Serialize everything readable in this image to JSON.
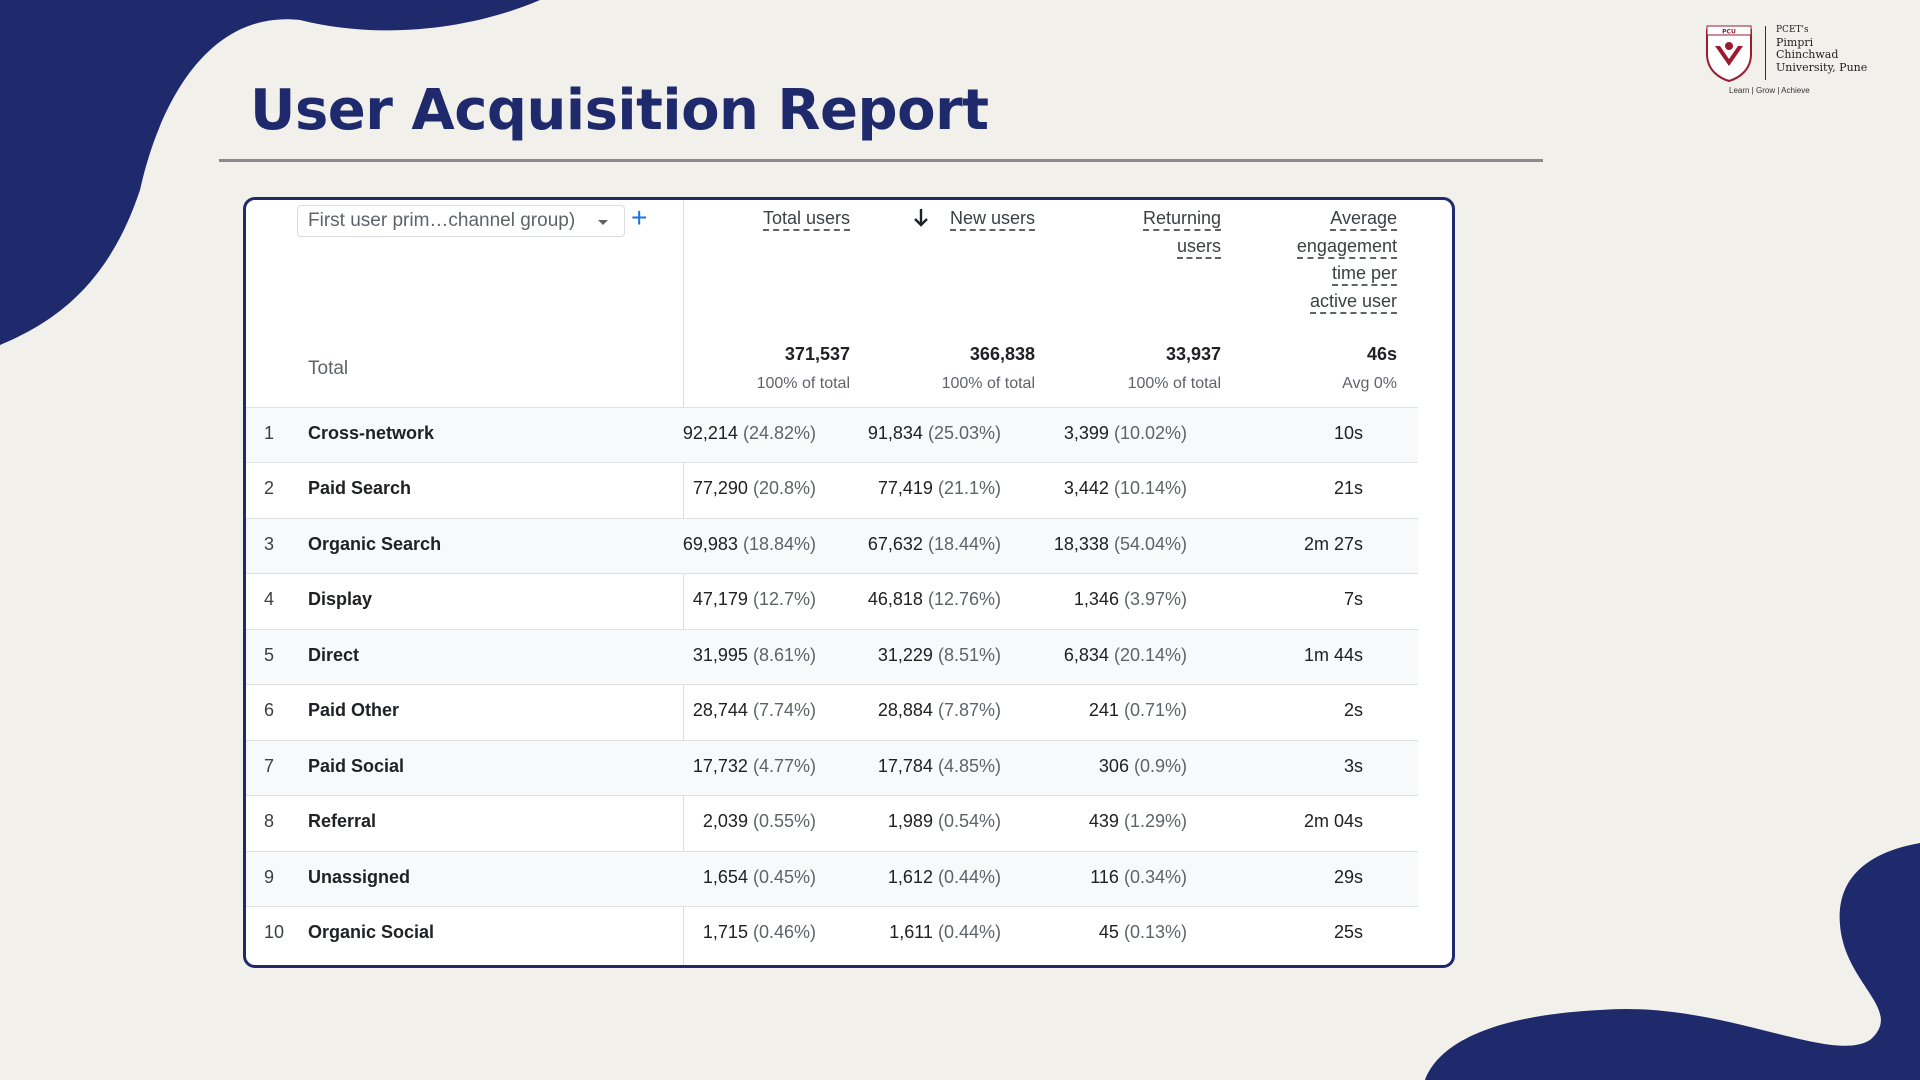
{
  "page_title": "User Acquisition Report",
  "logo": {
    "line1": "PCET's",
    "line2": "Pimpri",
    "line3": "Chinchwad",
    "line4": "University, Pune",
    "tagline": "Learn | Grow | Achieve",
    "badge": "PCU"
  },
  "colors": {
    "navy": "#1f2a6d",
    "blue": "#1a73e8",
    "maroon": "#9b1b30"
  },
  "table": {
    "dimension_selector": "First user prim…channel group)",
    "add_icon": "+",
    "headers": {
      "total_users": "Total users",
      "new_users": "New users",
      "returning_line1": "Returning",
      "returning_line2": "users",
      "engagement_line1": "Average",
      "engagement_line2": "engagement",
      "engagement_line3": "time per",
      "engagement_line4": "active user"
    },
    "total": {
      "label": "Total",
      "total_users": "371,537",
      "total_users_sub": "100% of total",
      "new_users": "366,838",
      "new_users_sub": "100% of total",
      "returning_users": "33,937",
      "returning_users_sub": "100% of total",
      "avg_engagement": "46s",
      "avg_engagement_sub": "Avg 0%"
    },
    "rows": [
      {
        "rank": "1",
        "channel": "Cross-network",
        "total": "92,214",
        "total_pct": "(24.82%)",
        "new": "91,834",
        "new_pct": "(25.03%)",
        "ret": "3,399",
        "ret_pct": "(10.02%)",
        "eng": "10s"
      },
      {
        "rank": "2",
        "channel": "Paid Search",
        "total": "77,290",
        "total_pct": "(20.8%)",
        "new": "77,419",
        "new_pct": "(21.1%)",
        "ret": "3,442",
        "ret_pct": "(10.14%)",
        "eng": "21s"
      },
      {
        "rank": "3",
        "channel": "Organic Search",
        "total": "69,983",
        "total_pct": "(18.84%)",
        "new": "67,632",
        "new_pct": "(18.44%)",
        "ret": "18,338",
        "ret_pct": "(54.04%)",
        "eng": "2m 27s"
      },
      {
        "rank": "4",
        "channel": "Display",
        "total": "47,179",
        "total_pct": "(12.7%)",
        "new": "46,818",
        "new_pct": "(12.76%)",
        "ret": "1,346",
        "ret_pct": "(3.97%)",
        "eng": "7s"
      },
      {
        "rank": "5",
        "channel": "Direct",
        "total": "31,995",
        "total_pct": "(8.61%)",
        "new": "31,229",
        "new_pct": "(8.51%)",
        "ret": "6,834",
        "ret_pct": "(20.14%)",
        "eng": "1m 44s"
      },
      {
        "rank": "6",
        "channel": "Paid Other",
        "total": "28,744",
        "total_pct": "(7.74%)",
        "new": "28,884",
        "new_pct": "(7.87%)",
        "ret": "241",
        "ret_pct": "(0.71%)",
        "eng": "2s"
      },
      {
        "rank": "7",
        "channel": "Paid Social",
        "total": "17,732",
        "total_pct": "(4.77%)",
        "new": "17,784",
        "new_pct": "(4.85%)",
        "ret": "306",
        "ret_pct": "(0.9%)",
        "eng": "3s"
      },
      {
        "rank": "8",
        "channel": "Referral",
        "total": "2,039",
        "total_pct": "(0.55%)",
        "new": "1,989",
        "new_pct": "(0.54%)",
        "ret": "439",
        "ret_pct": "(1.29%)",
        "eng": "2m 04s"
      },
      {
        "rank": "9",
        "channel": "Unassigned",
        "total": "1,654",
        "total_pct": "(0.45%)",
        "new": "1,612",
        "new_pct": "(0.44%)",
        "ret": "116",
        "ret_pct": "(0.34%)",
        "eng": "29s"
      },
      {
        "rank": "10",
        "channel": "Organic Social",
        "total": "1,715",
        "total_pct": "(0.46%)",
        "new": "1,611",
        "new_pct": "(0.44%)",
        "ret": "45",
        "ret_pct": "(0.13%)",
        "eng": "25s"
      }
    ]
  }
}
